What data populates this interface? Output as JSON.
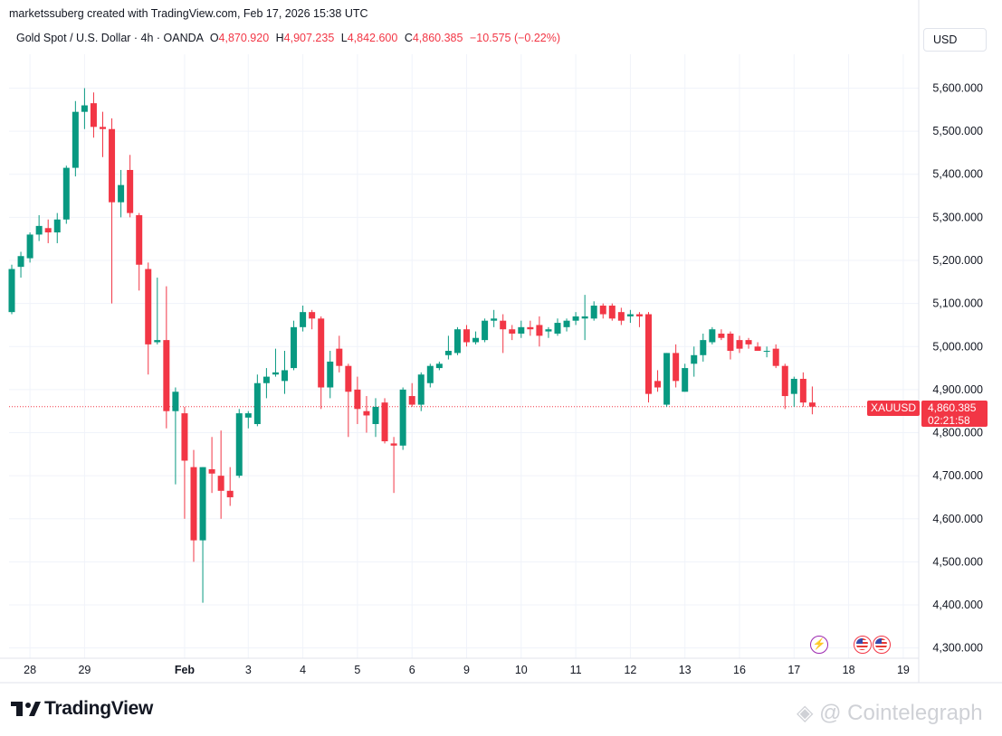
{
  "header": {
    "credit": "marketssuberg created with TradingView.com, Feb 17, 2026 15:38 UTC",
    "symbol_desc": "Gold Spot / U.S. Dollar · 4h · OANDA",
    "o_label": "O",
    "o_value": "4,870.920",
    "h_label": "H",
    "h_value": "4,907.235",
    "l_label": "L",
    "l_value": "4,842.600",
    "c_label": "C",
    "c_value": "4,860.385",
    "change": "−10.575 (−0.22%)",
    "currency": "USD"
  },
  "price_tag": {
    "symbol": "XAUUSD",
    "price": "4,860.385",
    "countdown": "02:21:58"
  },
  "footer": {
    "logo_text": "TradingView",
    "watermark": "@ Cointelegraph"
  },
  "events": {
    "lightning_icon": "lightning-icon",
    "flag_icon": "us-flag-icon"
  },
  "colors": {
    "up": "#089981",
    "down": "#f23645",
    "grid": "#f0f3fa",
    "axis_text": "#131722"
  },
  "chart_data": {
    "type": "candlestick",
    "interval": "4h",
    "ylim": [
      4250,
      5700
    ],
    "yticks": [
      4300,
      4400,
      4500,
      4600,
      4700,
      4800,
      4900,
      5000,
      5100,
      5200,
      5300,
      5400,
      5500,
      5600
    ],
    "ytick_labels": [
      "4,300.000",
      "4,400.000",
      "4,500.000",
      "4,600.000",
      "4,700.000",
      "4,800.000",
      "4,900.000",
      "5,000.000",
      "5,100.000",
      "5,200.000",
      "5,300.000",
      "5,400.000",
      "5,500.000",
      "5,600.000"
    ],
    "x_labels": [
      {
        "label": "28",
        "bar": 2
      },
      {
        "label": "29",
        "bar": 8
      },
      {
        "label": "Feb",
        "bar": 19,
        "bold": true
      },
      {
        "label": "3",
        "bar": 26
      },
      {
        "label": "4",
        "bar": 32
      },
      {
        "label": "5",
        "bar": 38
      },
      {
        "label": "6",
        "bar": 44
      },
      {
        "label": "9",
        "bar": 50
      },
      {
        "label": "10",
        "bar": 56
      },
      {
        "label": "11",
        "bar": 62
      },
      {
        "label": "12",
        "bar": 68
      },
      {
        "label": "13",
        "bar": 74
      },
      {
        "label": "16",
        "bar": 80
      },
      {
        "label": "17",
        "bar": 86
      },
      {
        "label": "18",
        "bar": 92
      },
      {
        "label": "19",
        "bar": 98
      }
    ],
    "last_price": 4860.385,
    "candles": [
      [
        5080,
        5190,
        5075,
        5180
      ],
      [
        5185,
        5220,
        5160,
        5210
      ],
      [
        5205,
        5265,
        5195,
        5260
      ],
      [
        5260,
        5305,
        5245,
        5280
      ],
      [
        5275,
        5295,
        5240,
        5265
      ],
      [
        5265,
        5310,
        5240,
        5295
      ],
      [
        5295,
        5420,
        5285,
        5415
      ],
      [
        5415,
        5570,
        5395,
        5545
      ],
      [
        5545,
        5600,
        5505,
        5560
      ],
      [
        5565,
        5590,
        5485,
        5510
      ],
      [
        5510,
        5545,
        5440,
        5505
      ],
      [
        5505,
        5530,
        5100,
        5335
      ],
      [
        5335,
        5410,
        5300,
        5375
      ],
      [
        5410,
        5445,
        5300,
        5310
      ],
      [
        5305,
        5310,
        5130,
        5190
      ],
      [
        5180,
        5195,
        4935,
        5005
      ],
      [
        5010,
        5160,
        5005,
        5015
      ],
      [
        5015,
        5140,
        4810,
        4850
      ],
      [
        4850,
        4905,
        4680,
        4895
      ],
      [
        4845,
        4860,
        4600,
        4735
      ],
      [
        4720,
        4760,
        4500,
        4550
      ],
      [
        4550,
        4720,
        4405,
        4720
      ],
      [
        4715,
        4790,
        4660,
        4705
      ],
      [
        4700,
        4805,
        4600,
        4665
      ],
      [
        4665,
        4720,
        4630,
        4650
      ],
      [
        4700,
        4855,
        4695,
        4845
      ],
      [
        4835,
        4850,
        4810,
        4845
      ],
      [
        4820,
        4935,
        4815,
        4915
      ],
      [
        4915,
        4950,
        4880,
        4930
      ],
      [
        4935,
        4995,
        4930,
        4940
      ],
      [
        4920,
        4990,
        4890,
        4945
      ],
      [
        4950,
        5060,
        4945,
        5045
      ],
      [
        5045,
        5095,
        5035,
        5080
      ],
      [
        5080,
        5085,
        5040,
        5065
      ],
      [
        5065,
        5070,
        4855,
        4905
      ],
      [
        4905,
        4990,
        4880,
        4965
      ],
      [
        4995,
        5025,
        4940,
        4955
      ],
      [
        4955,
        4960,
        4790,
        4895
      ],
      [
        4900,
        4930,
        4820,
        4855
      ],
      [
        4850,
        4885,
        4800,
        4840
      ],
      [
        4820,
        4880,
        4790,
        4860
      ],
      [
        4870,
        4880,
        4775,
        4780
      ],
      [
        4775,
        4790,
        4660,
        4770
      ],
      [
        4770,
        4905,
        4760,
        4900
      ],
      [
        4885,
        4915,
        4860,
        4865
      ],
      [
        4865,
        4940,
        4850,
        4935
      ],
      [
        4915,
        4960,
        4905,
        4955
      ],
      [
        4950,
        4965,
        4945,
        4960
      ],
      [
        4980,
        5025,
        4970,
        4990
      ],
      [
        4985,
        5045,
        4980,
        5040
      ],
      [
        5040,
        5050,
        5000,
        5010
      ],
      [
        5010,
        5035,
        5005,
        5020
      ],
      [
        5015,
        5065,
        5010,
        5060
      ],
      [
        5060,
        5085,
        5045,
        5065
      ],
      [
        5060,
        5075,
        4985,
        5040
      ],
      [
        5040,
        5050,
        5015,
        5030
      ],
      [
        5030,
        5060,
        5020,
        5045
      ],
      [
        5045,
        5060,
        5025,
        5040
      ],
      [
        5050,
        5070,
        5000,
        5025
      ],
      [
        5035,
        5045,
        5020,
        5040
      ],
      [
        5030,
        5065,
        5025,
        5055
      ],
      [
        5045,
        5065,
        5035,
        5060
      ],
      [
        5060,
        5080,
        5050,
        5070
      ],
      [
        5065,
        5120,
        5015,
        5070
      ],
      [
        5065,
        5105,
        5060,
        5095
      ],
      [
        5095,
        5100,
        5065,
        5075
      ],
      [
        5095,
        5100,
        5060,
        5065
      ],
      [
        5080,
        5090,
        5050,
        5060
      ],
      [
        5070,
        5085,
        5055,
        5075
      ],
      [
        5075,
        5080,
        5045,
        5070
      ],
      [
        5075,
        5080,
        4870,
        4890
      ],
      [
        4920,
        4945,
        4895,
        4905
      ],
      [
        4865,
        4985,
        4860,
        4985
      ],
      [
        4985,
        5005,
        4905,
        4920
      ],
      [
        4895,
        4960,
        4895,
        4950
      ],
      [
        4960,
        5000,
        4930,
        4980
      ],
      [
        4980,
        5030,
        4965,
        5015
      ],
      [
        5010,
        5045,
        5005,
        5040
      ],
      [
        5030,
        5040,
        5015,
        5020
      ],
      [
        5030,
        5035,
        4970,
        4990
      ],
      [
        5015,
        5025,
        4985,
        4995
      ],
      [
        5015,
        5020,
        4995,
        5005
      ],
      [
        5000,
        5010,
        4990,
        4990
      ],
      [
        4990,
        5000,
        4975,
        4990
      ],
      [
        4995,
        5005,
        4950,
        4955
      ],
      [
        4955,
        4960,
        4855,
        4885
      ],
      [
        4890,
        4930,
        4860,
        4925
      ],
      [
        4925,
        4940,
        4860,
        4870
      ],
      [
        4870,
        4907.235,
        4842.6,
        4860.385
      ]
    ]
  }
}
